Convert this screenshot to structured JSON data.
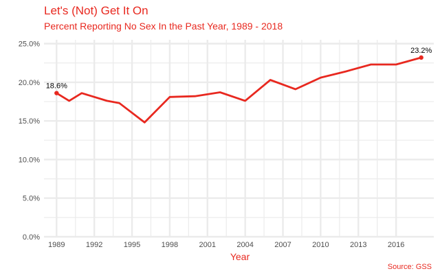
{
  "colors": {
    "accent": "#e8281f",
    "grid": "#ebebeb",
    "tick_text": "#4d4d4d",
    "label_text": "#000000"
  },
  "chart_data": {
    "type": "line",
    "title": "Let's (Not) Get It On",
    "subtitle": "Percent Reporting No Sex In the Past Year, 1989 - 2018",
    "xlabel": "Year",
    "ylabel": "",
    "caption": "Source: GSS",
    "xlim": [
      1988,
      2019
    ],
    "ylim": [
      0,
      0.255
    ],
    "x_ticks": [
      1989,
      1992,
      1995,
      1998,
      2001,
      2004,
      2007,
      2010,
      2013,
      2016
    ],
    "x_tick_labels": [
      "1989",
      "1992",
      "1995",
      "1998",
      "2001",
      "2004",
      "2007",
      "2010",
      "2013",
      "2016"
    ],
    "y_ticks": [
      0,
      0.05,
      0.1,
      0.15,
      0.2,
      0.25
    ],
    "y_tick_labels": [
      "0.0%",
      "5.0%",
      "10.0%",
      "15.0%",
      "20.0%",
      "25.0%"
    ],
    "grid": true,
    "series": [
      {
        "x": [
          1989,
          1990,
          1991,
          1993,
          1994,
          1996,
          1998,
          2000,
          2002,
          2004,
          2006,
          2008,
          2010,
          2012,
          2014,
          2016,
          2018
        ],
        "y": [
          0.186,
          0.176,
          0.186,
          0.176,
          0.173,
          0.148,
          0.181,
          0.182,
          0.187,
          0.176,
          0.203,
          0.191,
          0.206,
          0.214,
          0.223,
          0.223,
          0.232
        ]
      }
    ],
    "annotations": [
      {
        "x": 1989,
        "y": 0.186,
        "text": "18.6%"
      },
      {
        "x": 2018,
        "y": 0.232,
        "text": "23.2%"
      }
    ]
  }
}
